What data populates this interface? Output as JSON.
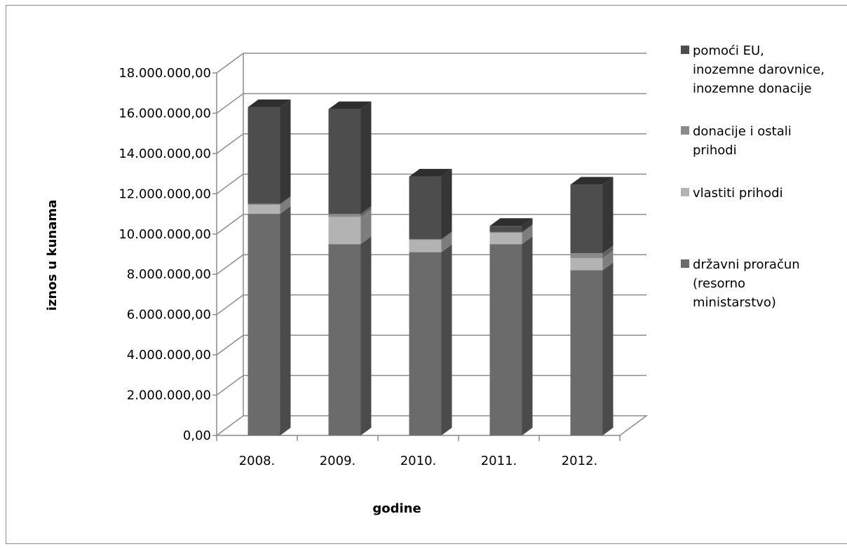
{
  "chart_data": {
    "type": "bar",
    "stacked": true,
    "three_d": true,
    "title": "",
    "xlabel": "godine",
    "ylabel": "iznos u kunama",
    "ylim": [
      0,
      18000000
    ],
    "ytick_step": 2000000,
    "yticks": [
      "0,00",
      "2.000.000,00",
      "4.000.000,00",
      "6.000.000,00",
      "8.000.000,00",
      "10.000.000,00",
      "12.000.000,00",
      "14.000.000,00",
      "16.000.000,00",
      "18.000.000,00"
    ],
    "categories": [
      "2008.",
      "2009.",
      "2010.",
      "2011.",
      "2012."
    ],
    "series": [
      {
        "name": "državni proračun (resorno ministarstvo)",
        "color": "#6b6b6b",
        "values": [
          11000000,
          9500000,
          9100000,
          9500000,
          8200000
        ]
      },
      {
        "name": "vlastiti prihodi",
        "color": "#b3b3b3",
        "values": [
          450000,
          1350000,
          600000,
          550000,
          600000
        ]
      },
      {
        "name": "donacije i ostali prihodi",
        "color": "#8a8a8a",
        "values": [
          50000,
          150000,
          50000,
          50000,
          250000
        ]
      },
      {
        "name": "pomoći EU, inozemne darovnice, inozemne donacije",
        "color": "#4d4d4d",
        "values": [
          4800000,
          5200000,
          3100000,
          300000,
          3400000
        ]
      }
    ],
    "legend": {
      "position": "right",
      "entries": [
        {
          "lines": [
            "pomoći EU,",
            "inozemne darovnice,",
            "inozemne donacije"
          ],
          "color": "#4d4d4d"
        },
        {
          "lines": [
            "donacije i ostali",
            "prihodi"
          ],
          "color": "#8a8a8a"
        },
        {
          "lines": [
            "vlastiti prihodi"
          ],
          "color": "#b3b3b3"
        },
        {
          "lines": [
            "državni proračun",
            "(resorno",
            "ministarstvo)"
          ],
          "color": "#6b6b6b"
        }
      ]
    },
    "grid": true
  }
}
